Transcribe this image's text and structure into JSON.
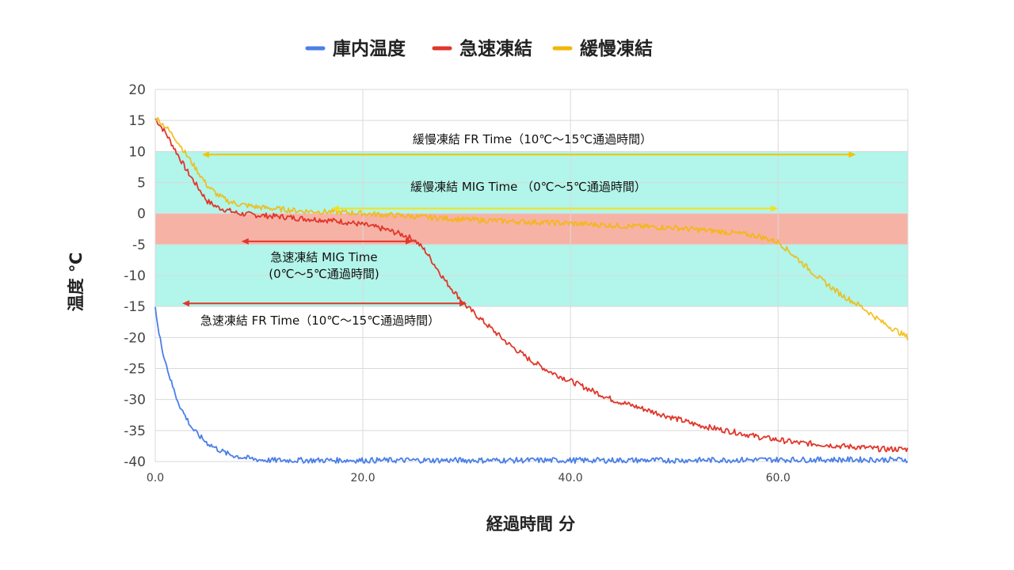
{
  "chart_data": {
    "type": "line",
    "xlabel": "経過時間 分",
    "ylabel": "温度 ℃",
    "xlim": [
      0,
      72.5
    ],
    "ylim": [
      -40,
      20
    ],
    "x_ticks": [
      "0.0",
      "20.0",
      "40.0",
      "60.0"
    ],
    "x_tick_values": [
      0,
      20,
      40,
      60
    ],
    "y_ticks": [
      "20",
      "15",
      "10",
      "5",
      "0",
      "-5",
      "-10",
      "-15",
      "-20",
      "-25",
      "-30",
      "-35",
      "-40"
    ],
    "y_tick_values": [
      20,
      15,
      10,
      5,
      0,
      -5,
      -10,
      -15,
      -20,
      -25,
      -30,
      -35,
      -40
    ],
    "grid": true,
    "legend_position": "top-center",
    "bands": [
      {
        "y0": -15,
        "y1": 10,
        "color": "#b2f5ea"
      },
      {
        "y0": -5,
        "y1": 0,
        "color": "#f7b2a6"
      }
    ],
    "series": [
      {
        "name": "庫内温度",
        "color": "#4a7fe8",
        "x": [
          0,
          0.3,
          0.7,
          1,
          1.5,
          2,
          2.5,
          3,
          3.5,
          4,
          5,
          6,
          7,
          8,
          9,
          10,
          11,
          12,
          14,
          16,
          18,
          20,
          25,
          30,
          40,
          50,
          60,
          72.5
        ],
        "y": [
          -15,
          -19,
          -22,
          -24,
          -27,
          -29.5,
          -31.5,
          -33,
          -34.5,
          -35.5,
          -37,
          -38,
          -38.8,
          -39.2,
          -39.5,
          -39.7,
          -39.8,
          -39.8,
          -39.8,
          -39.8,
          -39.8,
          -39.8,
          -39.8,
          -39.8,
          -39.8,
          -39.8,
          -39.7,
          -39.7
        ]
      },
      {
        "name": "急速凍結",
        "color": "#e0372b",
        "x": [
          0,
          1,
          2,
          3,
          4,
          5,
          6,
          7,
          8,
          10,
          12,
          14,
          16,
          18,
          20,
          22,
          24,
          25,
          26,
          27,
          28,
          29,
          30,
          32,
          34,
          36,
          38,
          40,
          42,
          44,
          46,
          48,
          50,
          52,
          54,
          56,
          58,
          60,
          62,
          64,
          66,
          68,
          70,
          72.5
        ],
        "y": [
          15.3,
          13,
          10,
          7,
          4.5,
          2,
          1,
          0.5,
          0,
          -0.3,
          -0.5,
          -0.8,
          -1,
          -1.3,
          -1.8,
          -2.5,
          -3.5,
          -4.3,
          -6,
          -8.5,
          -11,
          -13,
          -15,
          -18,
          -21,
          -23.5,
          -25.5,
          -27,
          -28.5,
          -30,
          -31,
          -32,
          -33,
          -34,
          -34.7,
          -35.3,
          -36,
          -36.5,
          -37,
          -37.2,
          -37.5,
          -37.7,
          -38,
          -38
        ]
      },
      {
        "name": "緩慢凍結",
        "color": "#f2b705",
        "x": [
          0,
          1,
          2,
          3,
          4,
          5,
          6,
          7,
          8,
          10,
          12,
          14,
          16,
          18,
          20,
          25,
          30,
          35,
          40,
          45,
          50,
          55,
          58,
          60,
          61,
          62,
          64,
          66,
          68,
          70,
          72.5
        ],
        "y": [
          15.5,
          14,
          12,
          9.5,
          7,
          4.5,
          3,
          2,
          1.5,
          1,
          0.7,
          0.4,
          0.3,
          0.2,
          0,
          -0.5,
          -1,
          -1.3,
          -1.6,
          -2,
          -2.3,
          -3,
          -3.6,
          -4.6,
          -6,
          -7.5,
          -10.5,
          -13,
          -15,
          -17.5,
          -20
        ]
      }
    ],
    "annotations": [
      {
        "id": "slow_fr",
        "text": "緩慢凍結 FR Time（10℃〜15℃通過時間）",
        "x": [
          4.5,
          67.5
        ],
        "y": 9.5,
        "color": "#f2c400"
      },
      {
        "id": "slow_mig",
        "text": "緩慢凍結 MIG Time （0℃〜5℃通過時間）",
        "x": [
          17,
          60
        ],
        "y": 0.8,
        "color": "#f2e21a"
      },
      {
        "id": "fast_mig",
        "text_line1": "急速凍結 MIG Time",
        "text_line2": "(0℃〜5℃通過時間)",
        "x": [
          8.3,
          24.8
        ],
        "y": -4.5,
        "color": "#e0372b"
      },
      {
        "id": "fast_fr",
        "text": "急速凍結 FR Time（10℃〜15℃通過時間）",
        "x": [
          2.6,
          30
        ],
        "y": -14.5,
        "color": "#e0372b"
      }
    ]
  }
}
